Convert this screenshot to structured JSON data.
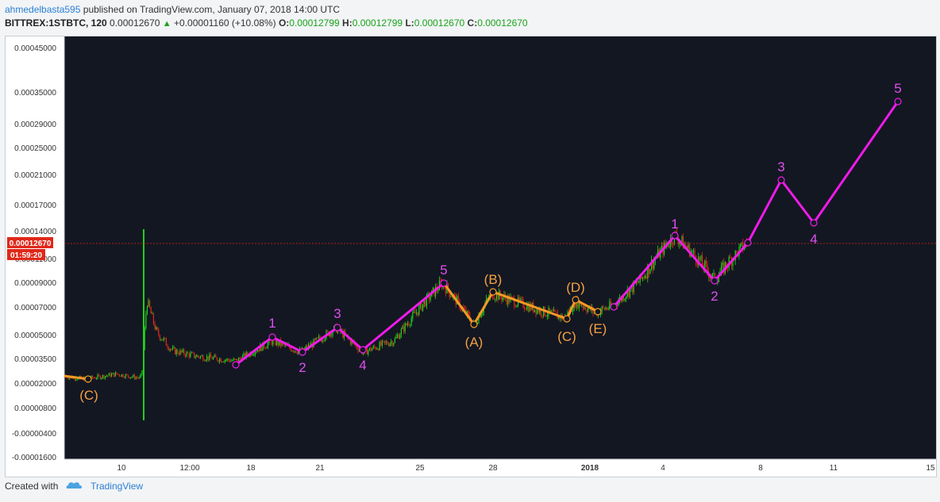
{
  "header": {
    "author": "ahmedelbasta595",
    "published": "published on TradingView.com, January 07, 2018 14:00 UTC",
    "symbol": "BITTREX:1STBTC, 120",
    "last": "0.00012670",
    "change": "+0.00001160 (+10.08%)",
    "o_label": "O:",
    "o_value": "0.00012799",
    "h_label": "H:",
    "h_value": "0.00012799",
    "l_label": "L:",
    "l_value": "0.00012670",
    "c_label": "C:",
    "c_value": "0.00012670"
  },
  "price_tag": {
    "value": "0.00012670",
    "countdown": "01:59:20"
  },
  "footer": {
    "created_with": "Created with",
    "brand": "TradingView"
  },
  "colors": {
    "background": "#131722",
    "bull": "#22d11a",
    "bear": "#e0281a",
    "magenta": "#ee1be8",
    "orange": "#f59a26",
    "price_line": "#e0281a",
    "label_magenta": "#e04ff0",
    "label_orange": "#f5a043"
  },
  "chart_data": {
    "type": "candlestick",
    "y_ticks": [
      "0.00045000",
      "0.00035000",
      "0.00029000",
      "0.00025000",
      "0.00021000",
      "0.00017000",
      "0.00014000",
      "0.00011000",
      "0.00009000",
      "0.00007000",
      "0.00005000",
      "0.00003500",
      "0.00002000",
      "0.00000800",
      "-0.00000400",
      "-0.00001600"
    ],
    "x_ticks": [
      "10",
      "12:00",
      "18",
      "21",
      "25",
      "28",
      "2018",
      "4",
      "8",
      "11",
      "15"
    ],
    "current_price": 0.0001267,
    "wave_labels": [
      {
        "text": "1",
        "x": "18",
        "y": 4.85e-05,
        "color": "magenta"
      },
      {
        "text": "2",
        "x": "20",
        "y": 3.72e-05,
        "color": "magenta"
      },
      {
        "text": "3",
        "x": "21",
        "y": 5.46e-05,
        "color": "magenta"
      },
      {
        "text": "4",
        "x": "22",
        "y": 3.9e-05,
        "color": "magenta"
      },
      {
        "text": "5",
        "x": "26",
        "y": 8.97e-05,
        "color": "magenta"
      },
      {
        "text": "(A)",
        "x": "27",
        "y": 5.63e-05,
        "color": "orange"
      },
      {
        "text": "(B)",
        "x": "28",
        "y": 8.2e-05,
        "color": "orange"
      },
      {
        "text": "(C)",
        "x": "31",
        "y": 6.1e-05,
        "color": "orange"
      },
      {
        "text": "(D)",
        "x": "Jan 1",
        "y": 7.55e-05,
        "color": "orange"
      },
      {
        "text": "(E)",
        "x": "Jan 1",
        "y": 6.6e-05,
        "color": "orange"
      },
      {
        "text": "1",
        "x": "Jan 4",
        "y": 0.0001345,
        "color": "magenta"
      },
      {
        "text": "2",
        "x": "Jan 6",
        "y": 9.11e-05,
        "color": "magenta"
      },
      {
        "text": "3",
        "x": "Jan 9",
        "y": 0.0002,
        "color": "magenta"
      },
      {
        "text": "4",
        "x": "Jan 10",
        "y": 0.000148,
        "color": "magenta"
      },
      {
        "text": "5",
        "x": "Jan 13",
        "y": 0.00033,
        "color": "magenta"
      },
      {
        "text": "(C)",
        "x": "9",
        "y": 2.05e-05,
        "color": "orange"
      }
    ],
    "magenta_path_x": [
      "16",
      "18",
      "20",
      "21",
      "22",
      "26"
    ],
    "magenta_path2_x": [
      "Jan 2",
      "Jan 4",
      "Jan 6",
      "Jan 9",
      "Jan 10",
      "Jan 13"
    ],
    "orange_path_x": [
      "26",
      "27",
      "28",
      "31",
      "Jan 1",
      "Jan 1"
    ],
    "grid": false
  }
}
